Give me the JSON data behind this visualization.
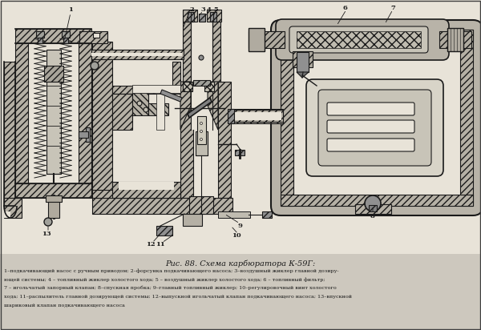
{
  "title": "Рис. 88. Схема карбюратора К-59Г:",
  "cap1": "1–подкачивающий насос с ручным приводом; 2–форсунка подкачивающего насоса; 3–воздушный жиклер главной дозиру-",
  "cap2": "ющей системы; 4 – топливный жиклер холостого хода; 5 – воздушный жиклер холостого хода; 6 – топливный фильтр;",
  "cap3": "7 – игольчатый запорный клапан; 8–спускная пробка; 9–главный топливный жиклер; 10–регулировочный винт холостого",
  "cap4": "хода; 11–распылитель главной дозирующей системы; 12–выпускной игольчатый клапан подкачивающего насоса; 13–впускной",
  "cap5": "шариковый клапан подкачивающего насоса",
  "bg": "#cdc8be",
  "paper": "#e8e3d8",
  "dark": "#1a1a1a",
  "hatch_c": "#555550",
  "mid_gray": "#aaa89e",
  "light_gray": "#d8d4c8",
  "figsize": [
    6.0,
    4.12
  ],
  "dpi": 100
}
